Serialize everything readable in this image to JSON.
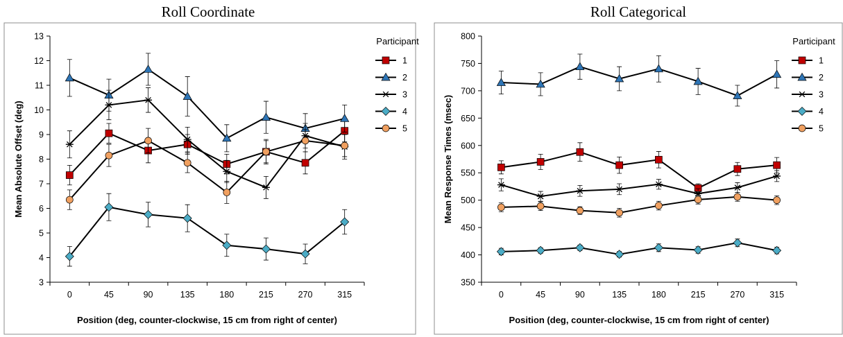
{
  "chart_data": [
    {
      "type": "line",
      "title": "Roll Coordinate",
      "xlabel": "Position (deg, counter-clockwise, 15 cm from right of center)",
      "ylabel": "Mean Absolute Offset (deg)",
      "categories": [
        "0",
        "45",
        "90",
        "135",
        "180",
        "215",
        "270",
        "315"
      ],
      "yticks": [
        3,
        4,
        5,
        6,
        7,
        8,
        9,
        10,
        11,
        12,
        13
      ],
      "ylim": [
        3,
        13
      ],
      "legend_title": "Participant",
      "legend_position": "top-right",
      "grid": false,
      "series": [
        {
          "name": "1",
          "marker": "square",
          "color": "#c00000",
          "values": [
            7.35,
            9.05,
            8.35,
            8.6,
            7.8,
            8.3,
            7.85,
            9.15
          ],
          "errors": [
            0.4,
            0.4,
            0.5,
            0.4,
            0.4,
            0.5,
            0.45,
            0.45
          ]
        },
        {
          "name": "2",
          "marker": "triangle",
          "color": "#2e75b6",
          "values": [
            11.3,
            10.6,
            11.65,
            10.55,
            8.85,
            9.7,
            9.25,
            9.65
          ],
          "errors": [
            0.75,
            0.65,
            0.65,
            0.8,
            0.55,
            0.65,
            0.6,
            0.55
          ]
        },
        {
          "name": "3",
          "marker": "asterisk",
          "color": "#000000",
          "values": [
            8.6,
            10.2,
            10.4,
            8.8,
            7.5,
            6.85,
            8.95,
            8.5
          ],
          "errors": [
            0.55,
            0.6,
            0.5,
            0.5,
            0.45,
            0.45,
            0.5,
            0.5
          ]
        },
        {
          "name": "4",
          "marker": "diamond",
          "color": "#4bacc6",
          "values": [
            4.05,
            6.05,
            5.75,
            5.6,
            4.5,
            4.35,
            4.15,
            5.45
          ],
          "errors": [
            0.4,
            0.55,
            0.5,
            0.55,
            0.45,
            0.45,
            0.4,
            0.5
          ]
        },
        {
          "name": "5",
          "marker": "circle",
          "color": "#f0a060",
          "values": [
            6.35,
            8.15,
            8.75,
            7.85,
            6.65,
            8.3,
            8.75,
            8.55
          ],
          "errors": [
            0.4,
            0.45,
            0.5,
            0.4,
            0.45,
            0.45,
            0.45,
            0.45
          ]
        }
      ]
    },
    {
      "type": "line",
      "title": "Roll Categorical",
      "xlabel": "Position (deg, counter-clockwise, 15 cm from right of center)",
      "ylabel": "Mean Response Times  (msec)",
      "categories": [
        "0",
        "45",
        "90",
        "135",
        "180",
        "215",
        "270",
        "315"
      ],
      "yticks": [
        350,
        400,
        450,
        500,
        550,
        600,
        650,
        700,
        750,
        800
      ],
      "ylim": [
        350,
        800
      ],
      "legend_title": "Participant",
      "legend_position": "top-right",
      "grid": false,
      "series": [
        {
          "name": "1",
          "marker": "square",
          "color": "#c00000",
          "values": [
            560,
            570,
            588,
            564,
            574,
            522,
            557,
            564
          ],
          "errors": [
            12,
            14,
            17,
            15,
            15,
            8,
            12,
            14
          ]
        },
        {
          "name": "2",
          "marker": "triangle",
          "color": "#2e75b6",
          "values": [
            715,
            712,
            744,
            722,
            740,
            717,
            691,
            730
          ],
          "errors": [
            21,
            21,
            23,
            22,
            24,
            24,
            19,
            25
          ]
        },
        {
          "name": "3",
          "marker": "asterisk",
          "color": "#000000",
          "values": [
            528,
            507,
            517,
            520,
            529,
            512,
            523,
            544
          ],
          "errors": [
            11,
            9,
            10,
            10,
            9,
            9,
            9,
            10
          ]
        },
        {
          "name": "4",
          "marker": "diamond",
          "color": "#4bacc6",
          "values": [
            406,
            408,
            413,
            401,
            413,
            409,
            422,
            408
          ],
          "errors": [
            6,
            5,
            5,
            5,
            7,
            6,
            7,
            6
          ]
        },
        {
          "name": "5",
          "marker": "circle",
          "color": "#f0a060",
          "values": [
            487,
            489,
            481,
            477,
            490,
            501,
            506,
            500
          ],
          "errors": [
            8,
            8,
            7,
            8,
            8,
            8,
            8,
            8
          ]
        }
      ]
    }
  ]
}
